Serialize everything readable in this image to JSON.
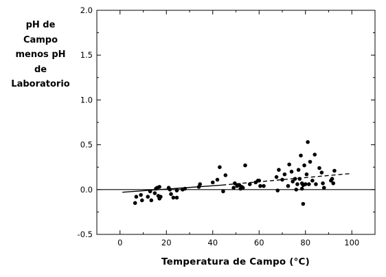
{
  "chart_data": {
    "type": "scatter",
    "ylabel_lines": [
      "pH de",
      "Campo",
      "menos pH",
      "de",
      "Laboratorio"
    ],
    "xlabel": "Temperatura de Campo (°C)",
    "xlim": [
      -10,
      110
    ],
    "ylim": [
      -0.5,
      2.0
    ],
    "x_ticks": [
      0,
      20,
      40,
      60,
      80,
      100
    ],
    "y_ticks": [
      -0.5,
      0.0,
      0.5,
      1.0,
      1.5,
      2.0
    ],
    "x_tick_labels": [
      "0",
      "20",
      "40",
      "60",
      "80",
      "100"
    ],
    "y_tick_labels": [
      "-0.5",
      "0.0",
      "0.5",
      "1.0",
      "1.5",
      "2.0"
    ],
    "grid": false,
    "reference_line_y": 0.0,
    "points": [
      [
        6.5,
        -0.15
      ],
      [
        7,
        -0.08
      ],
      [
        9,
        -0.06
      ],
      [
        9.5,
        -0.12
      ],
      [
        12,
        -0.08
      ],
      [
        13,
        -0.02
      ],
      [
        13.5,
        -0.12
      ],
      [
        15,
        -0.04
      ],
      [
        15.5,
        0.01
      ],
      [
        16,
        0.02
      ],
      [
        16.5,
        -0.07
      ],
      [
        17,
        0.03
      ],
      [
        17,
        -0.1
      ],
      [
        17.5,
        -0.08
      ],
      [
        21,
        0.02
      ],
      [
        21.5,
        0.0
      ],
      [
        22,
        -0.05
      ],
      [
        23,
        -0.09
      ],
      [
        24.5,
        -0.09
      ],
      [
        24.5,
        -0.01
      ],
      [
        27,
        0.0
      ],
      [
        28,
        0.01
      ],
      [
        34,
        0.03
      ],
      [
        34.5,
        0.06
      ],
      [
        40,
        0.08
      ],
      [
        42,
        0.11
      ],
      [
        43,
        0.25
      ],
      [
        44.5,
        -0.02
      ],
      [
        45.5,
        0.16
      ],
      [
        49,
        0.02
      ],
      [
        49.5,
        0.07
      ],
      [
        50.5,
        0.04
      ],
      [
        51.5,
        0.05
      ],
      [
        52,
        0.01
      ],
      [
        52.5,
        0.03
      ],
      [
        53,
        0.02
      ],
      [
        54,
        0.27
      ],
      [
        56,
        0.06
      ],
      [
        58.5,
        0.08
      ],
      [
        59.5,
        0.1
      ],
      [
        60,
        0.1
      ],
      [
        60.5,
        0.04
      ],
      [
        62,
        0.04
      ],
      [
        67.5,
        0.14
      ],
      [
        68,
        -0.01
      ],
      [
        68.5,
        0.22
      ],
      [
        70,
        0.11
      ],
      [
        71,
        0.17
      ],
      [
        72.5,
        0.04
      ],
      [
        73,
        0.28
      ],
      [
        74,
        0.2
      ],
      [
        74.5,
        0.09
      ],
      [
        75.5,
        0.12
      ],
      [
        76,
        0.0
      ],
      [
        76.5,
        0.06
      ],
      [
        77,
        0.22
      ],
      [
        77.5,
        0.12
      ],
      [
        78,
        0.38
      ],
      [
        78.5,
        0.07
      ],
      [
        78.5,
        0.01
      ],
      [
        79,
        0.05
      ],
      [
        79,
        -0.16
      ],
      [
        79.5,
        0.27
      ],
      [
        80,
        0.06
      ],
      [
        80.5,
        0.17
      ],
      [
        81,
        0.53
      ],
      [
        81.5,
        0.06
      ],
      [
        82,
        0.31
      ],
      [
        83,
        0.1
      ],
      [
        84,
        0.39
      ],
      [
        84.5,
        0.06
      ],
      [
        86,
        0.24
      ],
      [
        87,
        0.19
      ],
      [
        87.5,
        0.07
      ],
      [
        88,
        0.02
      ],
      [
        91,
        0.1
      ],
      [
        91.5,
        0.12
      ],
      [
        92,
        0.07
      ],
      [
        92.5,
        0.21
      ]
    ],
    "trend_solid": [
      [
        1,
        -0.03
      ],
      [
        44,
        0.05
      ]
    ],
    "trend_dashed": [
      [
        44,
        0.05
      ],
      [
        100,
        0.18
      ]
    ]
  }
}
